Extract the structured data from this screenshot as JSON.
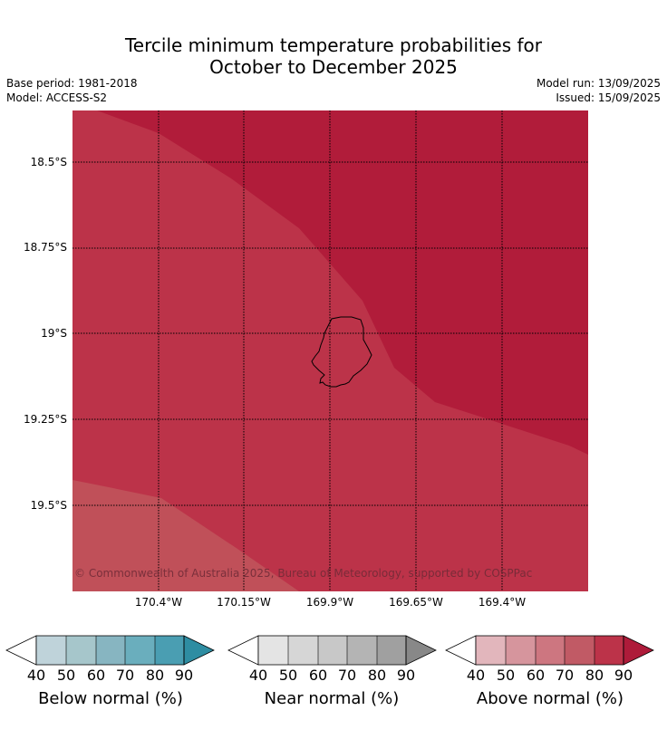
{
  "header": {
    "title_line1": "Tercile minimum temperature probabilities for",
    "title_line2": "October to December 2025",
    "base_period": "Base period: 1981-2018",
    "model": "Model: ACCESS-S2",
    "model_run": "Model run: 13/09/2025",
    "issued": "Issued: 15/09/2025"
  },
  "map": {
    "lat_labels": [
      "18.5°S",
      "18.75°S",
      "19°S",
      "19.25°S",
      "19.5°S"
    ],
    "lon_labels": [
      "170.4°W",
      "170.15°W",
      "169.9°W",
      "169.65°W",
      "169.4°W"
    ],
    "copyright": "© Commonwealth of Australia 2025, Bureau of Meteorology, supported by COSPPac",
    "colors": {
      "above_70": "#c05059",
      "above_80": "#bc3349",
      "above_90": "#b11c3a"
    }
  },
  "legend": {
    "ticks": [
      "40",
      "50",
      "60",
      "70",
      "80",
      "90"
    ],
    "below": {
      "label": "Below normal (%)",
      "colors": [
        "#bfd3da",
        "#a6c6cb",
        "#87b5c1",
        "#6aaebd",
        "#4a9eb2",
        "#2e8da2"
      ]
    },
    "near": {
      "label": "Near normal (%)",
      "colors": [
        "#e4e4e4",
        "#d6d6d6",
        "#c8c8c8",
        "#b4b4b4",
        "#a0a0a0",
        "#888888"
      ]
    },
    "above": {
      "label": "Above normal (%)",
      "colors": [
        "#e2b6bc",
        "#d6959d",
        "#cd7680",
        "#c15a65",
        "#bc3349",
        "#ae1b3a"
      ]
    }
  }
}
